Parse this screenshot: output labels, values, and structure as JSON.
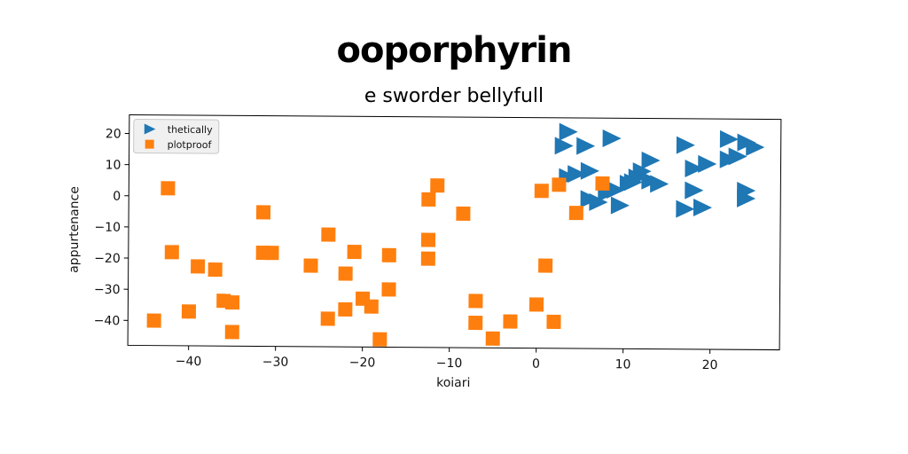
{
  "chart_data": {
    "type": "scatter",
    "title": "ooporphyrin",
    "subtitle": "e sworder bellyfull",
    "xlabel": "koiari",
    "ylabel": "appurtenance",
    "xlim": [
      -47,
      28
    ],
    "ylim": [
      -48,
      26
    ],
    "xticks": [
      -40,
      -30,
      -20,
      -10,
      0,
      10,
      20
    ],
    "yticks": [
      20,
      10,
      0,
      -10,
      -20,
      -30,
      -40
    ],
    "grid": false,
    "legend_position": "top-left",
    "series": [
      {
        "name": "thetically",
        "marker": "triangle-right",
        "color": "#1f77b4",
        "points": [
          [
            3,
            17
          ],
          [
            3.5,
            21.5
          ],
          [
            5.5,
            17
          ],
          [
            8.5,
            19.5
          ],
          [
            17,
            17.5
          ],
          [
            22,
            19.5
          ],
          [
            24,
            18.5
          ],
          [
            25,
            17
          ],
          [
            23,
            14
          ],
          [
            22,
            13
          ],
          [
            19.5,
            11.5
          ],
          [
            18,
            10
          ],
          [
            13,
            12.5
          ],
          [
            12,
            9
          ],
          [
            11.5,
            7
          ],
          [
            10.5,
            5
          ],
          [
            13,
            6
          ],
          [
            14,
            5
          ],
          [
            6,
            9
          ],
          [
            3.5,
            7
          ],
          [
            4.5,
            8
          ],
          [
            9,
            3
          ],
          [
            8,
            2
          ],
          [
            6,
            0
          ],
          [
            7,
            -1
          ],
          [
            9.5,
            -2
          ],
          [
            18,
            3
          ],
          [
            17,
            -3
          ],
          [
            19,
            -2.5
          ],
          [
            24,
            3
          ],
          [
            24,
            0.5
          ],
          [
            11,
            5.5
          ]
        ]
      },
      {
        "name": "plotproof",
        "marker": "square",
        "color": "#ff7f0e",
        "points": [
          [
            -42.5,
            2.5
          ],
          [
            -42,
            -18
          ],
          [
            -39,
            -22.5
          ],
          [
            -37,
            -23.5
          ],
          [
            -40,
            -37
          ],
          [
            -36,
            -33.5
          ],
          [
            -35,
            -34
          ],
          [
            -35,
            -43.5
          ],
          [
            -44,
            -40
          ],
          [
            -31.5,
            -5
          ],
          [
            -31.5,
            -18
          ],
          [
            -30.5,
            -18
          ],
          [
            -26,
            -22
          ],
          [
            -24,
            -12
          ],
          [
            -22,
            -24.5
          ],
          [
            -21,
            -17.5
          ],
          [
            -22,
            -36
          ],
          [
            -20,
            -32.5
          ],
          [
            -19,
            -35
          ],
          [
            -24,
            -39
          ],
          [
            -18,
            -45.5
          ],
          [
            -17,
            -18.5
          ],
          [
            -17,
            -29.5
          ],
          [
            -12.5,
            -19.5
          ],
          [
            -12.5,
            -13.5
          ],
          [
            -12.5,
            -0.5
          ],
          [
            -11.5,
            4
          ],
          [
            -8.5,
            -5
          ],
          [
            -7,
            -33
          ],
          [
            -7,
            -40
          ],
          [
            -5,
            -45
          ],
          [
            -3,
            -39.5
          ],
          [
            0,
            -34
          ],
          [
            2,
            -39.5
          ],
          [
            1,
            -21.5
          ],
          [
            0.5,
            2.5
          ],
          [
            2.5,
            4.5
          ],
          [
            4.5,
            -4.5
          ],
          [
            7.5,
            5
          ]
        ]
      }
    ]
  }
}
